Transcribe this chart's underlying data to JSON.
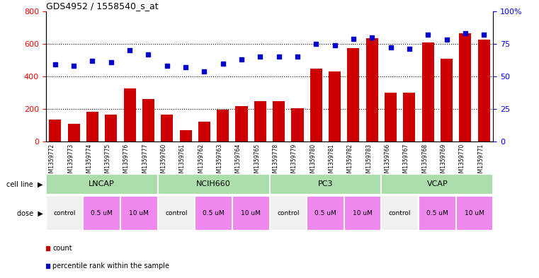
{
  "title": "GDS4952 / 1558540_s_at",
  "samples": [
    "GSM1359772",
    "GSM1359773",
    "GSM1359774",
    "GSM1359775",
    "GSM1359776",
    "GSM1359777",
    "GSM1359760",
    "GSM1359761",
    "GSM1359762",
    "GSM1359763",
    "GSM1359764",
    "GSM1359765",
    "GSM1359778",
    "GSM1359779",
    "GSM1359780",
    "GSM1359781",
    "GSM1359782",
    "GSM1359783",
    "GSM1359766",
    "GSM1359767",
    "GSM1359768",
    "GSM1359769",
    "GSM1359770",
    "GSM1359771"
  ],
  "counts": [
    135,
    110,
    185,
    165,
    325,
    260,
    165,
    70,
    125,
    195,
    220,
    248,
    248,
    205,
    450,
    430,
    575,
    635,
    300,
    300,
    610,
    510,
    665,
    625
  ],
  "percentiles": [
    59,
    58,
    62,
    61,
    70,
    67,
    58,
    57,
    54,
    60,
    63,
    65,
    65,
    65,
    75,
    74,
    79,
    80,
    72,
    71,
    82,
    78,
    83,
    82
  ],
  "cell_lines": [
    "LNCAP",
    "NCIH660",
    "PC3",
    "VCAP"
  ],
  "cell_line_spans": [
    [
      0,
      6
    ],
    [
      6,
      12
    ],
    [
      12,
      18
    ],
    [
      18,
      24
    ]
  ],
  "dose_groups": [
    [
      0,
      2,
      "control"
    ],
    [
      2,
      4,
      "0.5 uM"
    ],
    [
      4,
      6,
      "10 uM"
    ],
    [
      6,
      8,
      "control"
    ],
    [
      8,
      10,
      "0.5 uM"
    ],
    [
      10,
      12,
      "10 uM"
    ],
    [
      12,
      14,
      "control"
    ],
    [
      14,
      16,
      "0.5 uM"
    ],
    [
      16,
      18,
      "10 uM"
    ],
    [
      18,
      20,
      "control"
    ],
    [
      20,
      22,
      "0.5 uM"
    ],
    [
      22,
      24,
      "10 uM"
    ]
  ],
  "bar_color": "#cc0000",
  "dot_color": "#0000cc",
  "cell_line_color": "#aaddaa",
  "dose_control_color": "#f0f0f0",
  "dose_uM_color": "#ee88ee",
  "label_bg_color": "#d8d8d8",
  "ylim_left": [
    0,
    800
  ],
  "ylim_right": [
    0,
    100
  ],
  "yticks_left": [
    0,
    200,
    400,
    600,
    800
  ],
  "yticks_right": [
    0,
    25,
    50,
    75,
    100
  ],
  "ytick_labels_right": [
    "0",
    "25",
    "50",
    "75",
    "100%"
  ]
}
